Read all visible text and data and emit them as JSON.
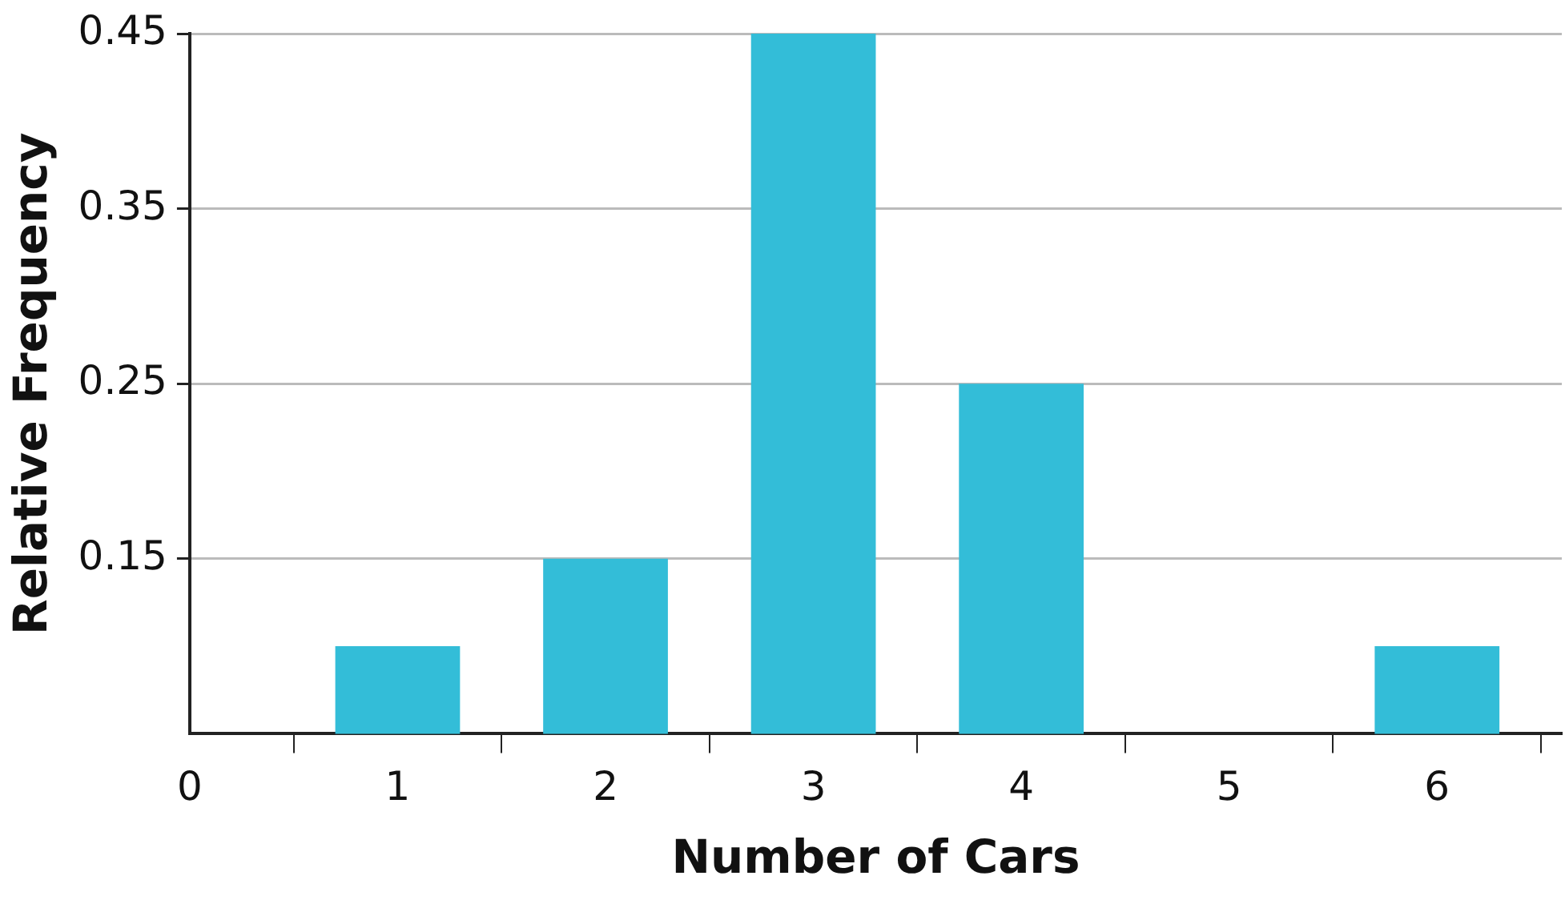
{
  "chart_data": {
    "type": "bar",
    "xlabel": "Number of Cars",
    "ylabel": "Relative Frequency",
    "x": [
      1,
      2,
      3,
      4,
      5,
      6
    ],
    "values": [
      0.1,
      0.15,
      0.45,
      0.25,
      null,
      0.1
    ],
    "color": "#33bdd8",
    "xlim": [
      0,
      6.6
    ],
    "xticks": [
      0,
      1,
      2,
      3,
      4,
      5,
      6
    ],
    "ylim": [
      0.05,
      0.45
    ],
    "yticks": [
      0.15,
      0.25,
      0.35,
      0.45
    ],
    "grid": "y",
    "legend": false
  }
}
